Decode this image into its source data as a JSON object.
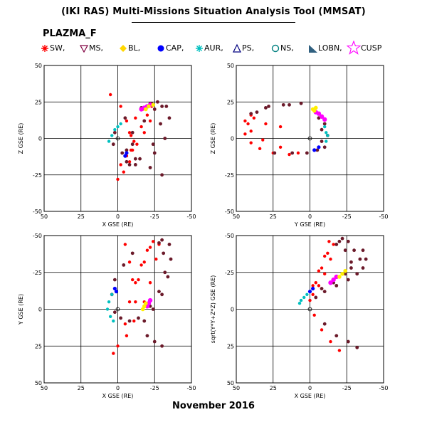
{
  "title": "(IKI RAS) Multi-Missions Situation Analysis Tool (MMSAT)",
  "mission": "PLAZMA_F",
  "footer": "November 2016",
  "legend": [
    {
      "label": "SW,",
      "icon": "red-star-icon",
      "color": "#ff0000"
    },
    {
      "label": "MS,",
      "icon": "purple-triangle-down-icon",
      "color": "#800040"
    },
    {
      "label": "BL,",
      "icon": "yellow-diamond-icon",
      "color": "#ffd700"
    },
    {
      "label": "CAP,",
      "icon": "blue-dot-icon",
      "color": "#0000ff"
    },
    {
      "label": "AUR,",
      "icon": "cyan-asterisk-icon",
      "color": "#00c0c0"
    },
    {
      "label": "PS,",
      "icon": "navy-triangle-icon",
      "color": "#000080"
    },
    {
      "label": "NS,",
      "icon": "green-circle-icon",
      "color": "#008080"
    },
    {
      "label": "LOBN,",
      "icon": "teal-triangle-icon",
      "color": "#306080"
    },
    {
      "label": "CUSP",
      "icon": "magenta-star-icon",
      "color": "#ff00ff"
    }
  ],
  "colors": {
    "sw": "#ff0000",
    "ms": "#6b1a2a",
    "cusp": "#ff00ff",
    "bl": "#ffee00",
    "aur": "#00c0c0",
    "cap": "#0000ff"
  },
  "chart_data": [
    {
      "type": "scatter",
      "panel": "XZ",
      "xlabel": "X GSE (RE)",
      "ylabel": "Z GSE (RE)",
      "xlim": [
        50,
        -50
      ],
      "ylim": [
        -50,
        50
      ],
      "xticks": [
        "50",
        "25",
        "0",
        "-25",
        "-50"
      ],
      "yticks": [
        "50",
        "25",
        "0",
        "-25",
        "-50"
      ],
      "grid": true,
      "series": [
        {
          "region": "SW",
          "points": [
            [
              5,
              30
            ],
            [
              -2,
              22
            ],
            [
              -6,
              12
            ],
            [
              -9,
              2
            ],
            [
              -10,
              -8
            ],
            [
              -8,
              -16
            ],
            [
              -4,
              -23
            ],
            [
              0,
              -28
            ],
            [
              -2,
              -18
            ],
            [
              -6,
              -12
            ],
            [
              -11,
              -2
            ],
            [
              -16,
              8
            ],
            [
              -20,
              16
            ],
            [
              -23,
              22
            ],
            [
              -17,
              20
            ],
            [
              -12,
              14
            ],
            [
              -8,
              4
            ],
            [
              -9,
              -8
            ],
            [
              -13,
              -4
            ],
            [
              -18,
              4
            ],
            [
              -22,
              12
            ],
            [
              -25,
              20
            ]
          ]
        },
        {
          "region": "MS",
          "points": [
            [
              -22,
              24
            ],
            [
              -27,
              25
            ],
            [
              -30,
              22
            ],
            [
              -29,
              10
            ],
            [
              -24,
              -4
            ],
            [
              -15,
              -14
            ],
            [
              -8,
              -18
            ],
            [
              -6,
              -8
            ],
            [
              -10,
              4
            ],
            [
              -18,
              12
            ],
            [
              -25,
              20
            ],
            [
              -23,
              24
            ],
            [
              -16,
              21
            ],
            [
              -5,
              14
            ],
            [
              2,
              4
            ],
            [
              3,
              -4
            ],
            [
              -3,
              -10
            ],
            [
              -12,
              -14
            ],
            [
              -22,
              -20
            ],
            [
              -30,
              -25
            ],
            [
              -33,
              22
            ],
            [
              -35,
              14
            ],
            [
              -32,
              0
            ],
            [
              -25,
              -10
            ],
            [
              -12,
              -18
            ],
            [
              -6,
              -16
            ],
            [
              -10,
              -4
            ]
          ]
        },
        {
          "region": "CUSP",
          "points": [
            [
              -16,
              20
            ],
            [
              -18,
              21
            ],
            [
              -20,
              22
            ],
            [
              -22,
              23
            ]
          ]
        },
        {
          "region": "BL",
          "points": [
            [
              -19,
              20
            ],
            [
              -21,
              22
            ],
            [
              -24,
              23
            ]
          ]
        },
        {
          "region": "AUR",
          "points": [
            [
              -2,
              10
            ],
            [
              0,
              8
            ],
            [
              2,
              6
            ],
            [
              4,
              2
            ],
            [
              6,
              -2
            ]
          ]
        },
        {
          "region": "CAP",
          "points": [
            [
              -6,
              -10
            ],
            [
              -5,
              -12
            ]
          ]
        }
      ]
    },
    {
      "type": "scatter",
      "panel": "YZ",
      "xlabel": "Y GSE (RE)",
      "ylabel": "Z GSE (RE)",
      "xlim": [
        50,
        -50
      ],
      "ylim": [
        -50,
        50
      ],
      "xticks": [
        "50",
        "25",
        "0",
        "-25",
        "-50"
      ],
      "yticks": [
        "50",
        "25",
        "0",
        "-25",
        "-50"
      ],
      "grid": true,
      "series": [
        {
          "region": "SW",
          "points": [
            [
              40,
              16
            ],
            [
              42,
              10
            ],
            [
              44,
              3
            ],
            [
              40,
              -3
            ],
            [
              34,
              -7
            ],
            [
              25,
              -10
            ],
            [
              14,
              -11
            ],
            [
              8,
              -10
            ],
            [
              20,
              -6
            ],
            [
              32,
              -1
            ],
            [
              40,
              5
            ],
            [
              44,
              12
            ],
            [
              38,
              14
            ],
            [
              30,
              10
            ],
            [
              20,
              8
            ]
          ]
        },
        {
          "region": "MS",
          "points": [
            [
              40,
              17
            ],
            [
              30,
              21
            ],
            [
              18,
              23
            ],
            [
              6,
              24
            ],
            [
              -2,
              20
            ],
            [
              -6,
              14
            ],
            [
              -8,
              6
            ],
            [
              -8,
              -2
            ],
            [
              -5,
              -8
            ],
            [
              2,
              -10
            ],
            [
              12,
              -10
            ],
            [
              24,
              -10
            ],
            [
              -4,
              18
            ],
            [
              -10,
              10
            ],
            [
              -12,
              2
            ],
            [
              -10,
              -6
            ],
            [
              36,
              18
            ],
            [
              28,
              22
            ],
            [
              14,
              23
            ]
          ]
        },
        {
          "region": "CUSP",
          "points": [
            [
              -4,
              18
            ],
            [
              -6,
              17
            ],
            [
              -8,
              15
            ],
            [
              -10,
              13
            ]
          ]
        },
        {
          "region": "BL",
          "points": [
            [
              -2,
              20
            ],
            [
              -4,
              21
            ],
            [
              -3,
              19
            ]
          ]
        },
        {
          "region": "AUR",
          "points": [
            [
              -10,
              8
            ],
            [
              -11,
              4
            ],
            [
              -12,
              2
            ],
            [
              -11,
              -2
            ]
          ]
        },
        {
          "region": "CAP",
          "points": [
            [
              -6,
              -6
            ],
            [
              -3,
              -8
            ]
          ]
        }
      ]
    },
    {
      "type": "scatter",
      "panel": "XY",
      "xlabel": "X GSE (RE)",
      "ylabel": "Y GSE (RE)",
      "xlim": [
        50,
        -50
      ],
      "ylim": [
        50,
        -50
      ],
      "xticks": [
        "50",
        "25",
        "0",
        "-25",
        "-50"
      ],
      "yticks": [
        "-50",
        "-25",
        "0",
        "25",
        "50"
      ],
      "grid": true,
      "series": [
        {
          "region": "SW",
          "points": [
            [
              -5,
              -44
            ],
            [
              -8,
              -32
            ],
            [
              -10,
              -20
            ],
            [
              -12,
              -5
            ],
            [
              -11,
              8
            ],
            [
              -6,
              18
            ],
            [
              0,
              25
            ],
            [
              3,
              30
            ],
            [
              -5,
              10
            ],
            [
              -8,
              -5
            ],
            [
              -12,
              -18
            ],
            [
              -16,
              -30
            ],
            [
              -20,
              -40
            ],
            [
              -24,
              -46
            ],
            [
              -28,
              -44
            ],
            [
              -26,
              -34
            ],
            [
              -22,
              -18
            ],
            [
              -18,
              -5
            ],
            [
              -14,
              -20
            ],
            [
              -18,
              -32
            ],
            [
              -22,
              -42
            ]
          ]
        },
        {
          "region": "MS",
          "points": [
            [
              -30,
              -47
            ],
            [
              -35,
              -44
            ],
            [
              -36,
              -34
            ],
            [
              -34,
              -22
            ],
            [
              -30,
              -10
            ],
            [
              -24,
              0
            ],
            [
              -18,
              8
            ],
            [
              -20,
              18
            ],
            [
              -25,
              22
            ],
            [
              -30,
              25
            ],
            [
              -28,
              -45
            ],
            [
              -31,
              -38
            ],
            [
              -32,
              -25
            ],
            [
              -28,
              -12
            ],
            [
              -22,
              -2
            ],
            [
              -14,
              6
            ],
            [
              -8,
              8
            ],
            [
              -2,
              6
            ],
            [
              2,
              2
            ],
            [
              4,
              -10
            ],
            [
              2,
              -20
            ],
            [
              -4,
              -30
            ],
            [
              -10,
              -38
            ]
          ]
        },
        {
          "region": "CUSP",
          "points": [
            [
              -20,
              -2
            ],
            [
              -21,
              -4
            ],
            [
              -22,
              -6
            ]
          ]
        },
        {
          "region": "BL",
          "points": [
            [
              -17,
              0
            ],
            [
              -18,
              -2
            ],
            [
              -19,
              -4
            ]
          ]
        },
        {
          "region": "AUR",
          "points": [
            [
              4,
              -10
            ],
            [
              6,
              -5
            ],
            [
              7,
              0
            ],
            [
              5,
              5
            ],
            [
              3,
              8
            ]
          ]
        },
        {
          "region": "CAP",
          "points": [
            [
              1,
              -12
            ],
            [
              2,
              -14
            ]
          ]
        }
      ]
    },
    {
      "type": "scatter",
      "panel": "XR",
      "xlabel": "X GSE (RE)",
      "ylabel": "sqrt(Y*Y+Z*Z) GSE (RE)",
      "xlim": [
        50,
        -50
      ],
      "ylim": [
        50,
        -50
      ],
      "xticks": [
        "50",
        "25",
        "0",
        "-25",
        "-50"
      ],
      "yticks": [
        "-50",
        "-25",
        "0",
        "25",
        "50"
      ],
      "grid": true,
      "series": [
        {
          "region": "SW",
          "points": [
            [
              -13,
              -46
            ],
            [
              -10,
              -36
            ],
            [
              -6,
              -26
            ],
            [
              -2,
              -16
            ],
            [
              0,
              -6
            ],
            [
              -3,
              4
            ],
            [
              -8,
              14
            ],
            [
              -14,
              22
            ],
            [
              -20,
              28
            ],
            [
              -16,
              -44
            ],
            [
              -14,
              -34
            ],
            [
              -10,
              -24
            ],
            [
              -6,
              -16
            ],
            [
              -2,
              -10
            ],
            [
              -12,
              -38
            ],
            [
              -8,
              -28
            ],
            [
              -4,
              -18
            ]
          ]
        },
        {
          "region": "MS",
          "points": [
            [
              -18,
              -44
            ],
            [
              -22,
              -48
            ],
            [
              -26,
              -46
            ],
            [
              -30,
              -40
            ],
            [
              -34,
              -34
            ],
            [
              -36,
              -40
            ],
            [
              -38,
              -34
            ],
            [
              -36,
              -28
            ],
            [
              -32,
              -24
            ],
            [
              -26,
              -20
            ],
            [
              -18,
              -16
            ],
            [
              -10,
              -12
            ],
            [
              -4,
              -8
            ],
            [
              -20,
              -46
            ],
            [
              -24,
              -40
            ],
            [
              -28,
              -32
            ],
            [
              -28,
              -28
            ],
            [
              -24,
              -24
            ],
            [
              -16,
              -18
            ],
            [
              -8,
              -14
            ],
            [
              -10,
              10
            ],
            [
              -18,
              18
            ],
            [
              -26,
              22
            ],
            [
              -32,
              26
            ]
          ]
        },
        {
          "region": "CUSP",
          "points": [
            [
              -14,
              -18
            ],
            [
              -16,
              -20
            ],
            [
              -18,
              -22
            ]
          ]
        },
        {
          "region": "BL",
          "points": [
            [
              -20,
              -22
            ],
            [
              -22,
              -24
            ],
            [
              -24,
              -26
            ]
          ]
        },
        {
          "region": "AUR",
          "points": [
            [
              2,
              -10
            ],
            [
              4,
              -8
            ],
            [
              6,
              -6
            ],
            [
              7,
              -4
            ]
          ]
        },
        {
          "region": "CAP",
          "points": [
            [
              -2,
              -14
            ],
            [
              0,
              -12
            ]
          ]
        }
      ]
    }
  ]
}
